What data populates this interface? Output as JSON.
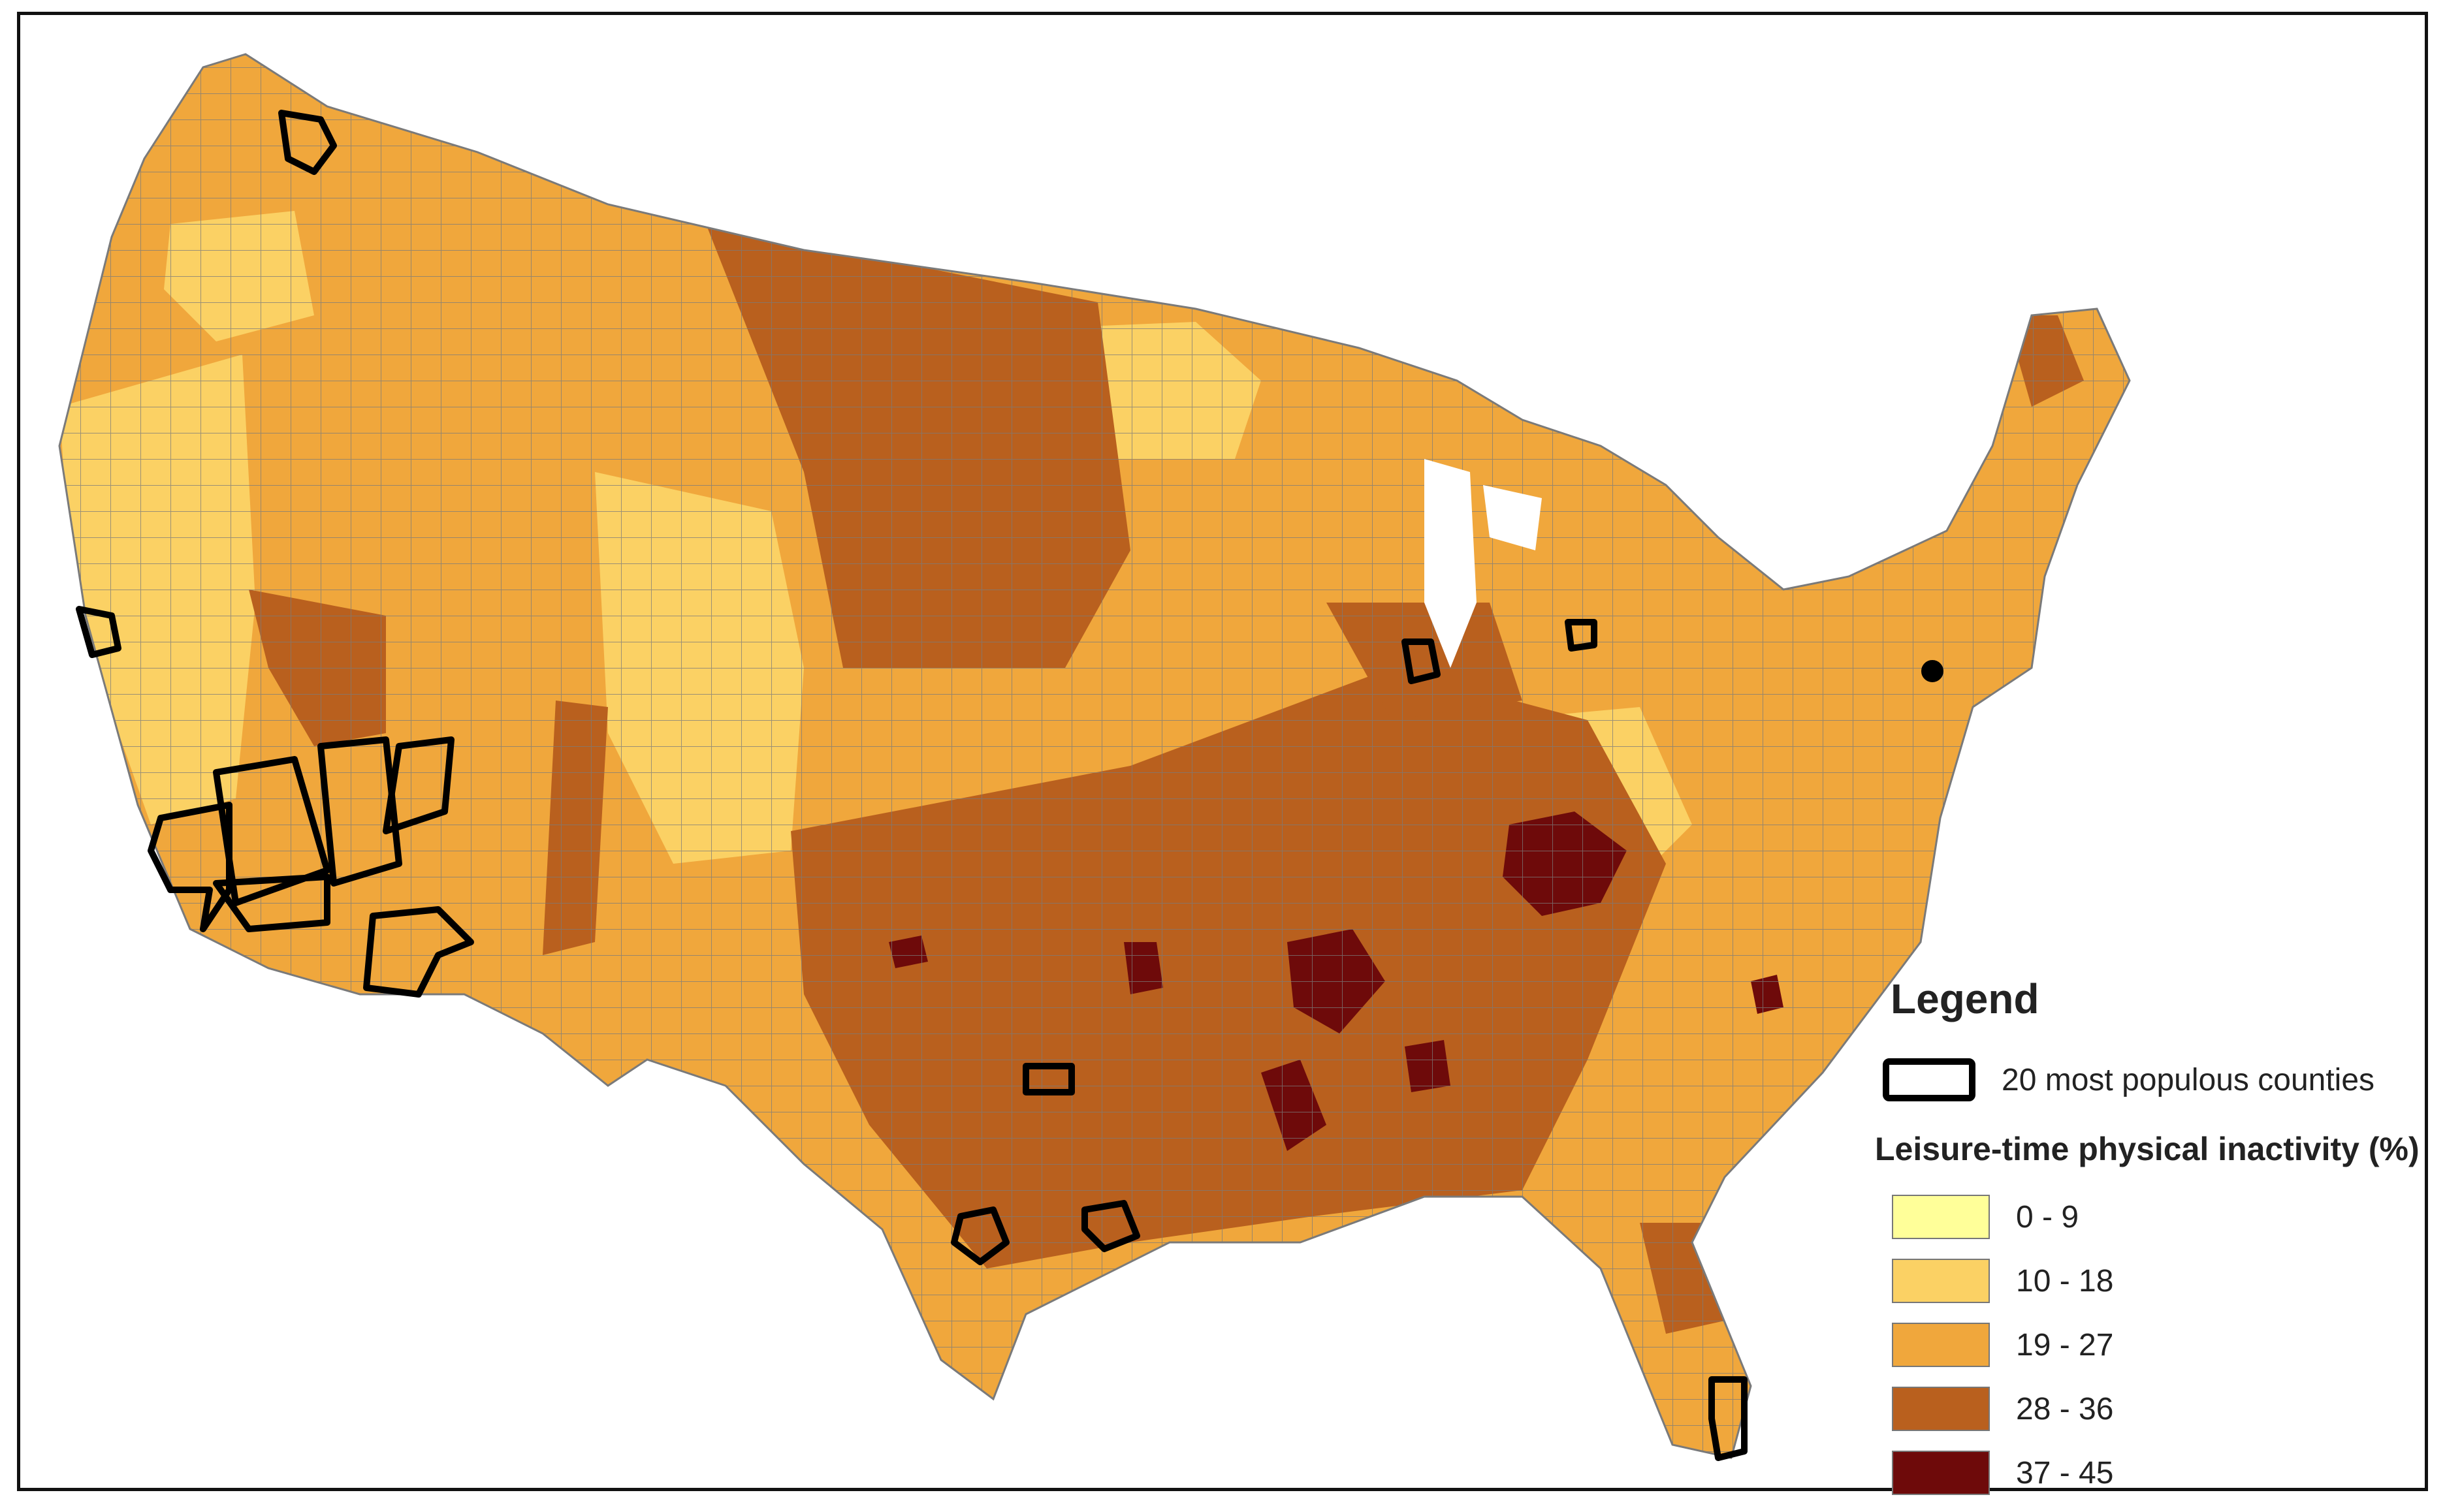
{
  "legend": {
    "title": "Legend",
    "outline_label": "20 most populous counties",
    "class_title": "Leisure-time physical inactivity (%)",
    "classes": [
      {
        "label": "0 - 9",
        "color": "#ffff99"
      },
      {
        "label": "10 - 18",
        "color": "#fbd164"
      },
      {
        "label": "19 - 27",
        "color": "#f0a73c"
      },
      {
        "label": "28 - 36",
        "color": "#b9601e"
      },
      {
        "label": "37 - 45",
        "color": "#6e0a0a"
      }
    ]
  },
  "map": {
    "region": "contiguous United States counties",
    "border_color": "#7a7a7a",
    "outline_color": "#000000"
  }
}
